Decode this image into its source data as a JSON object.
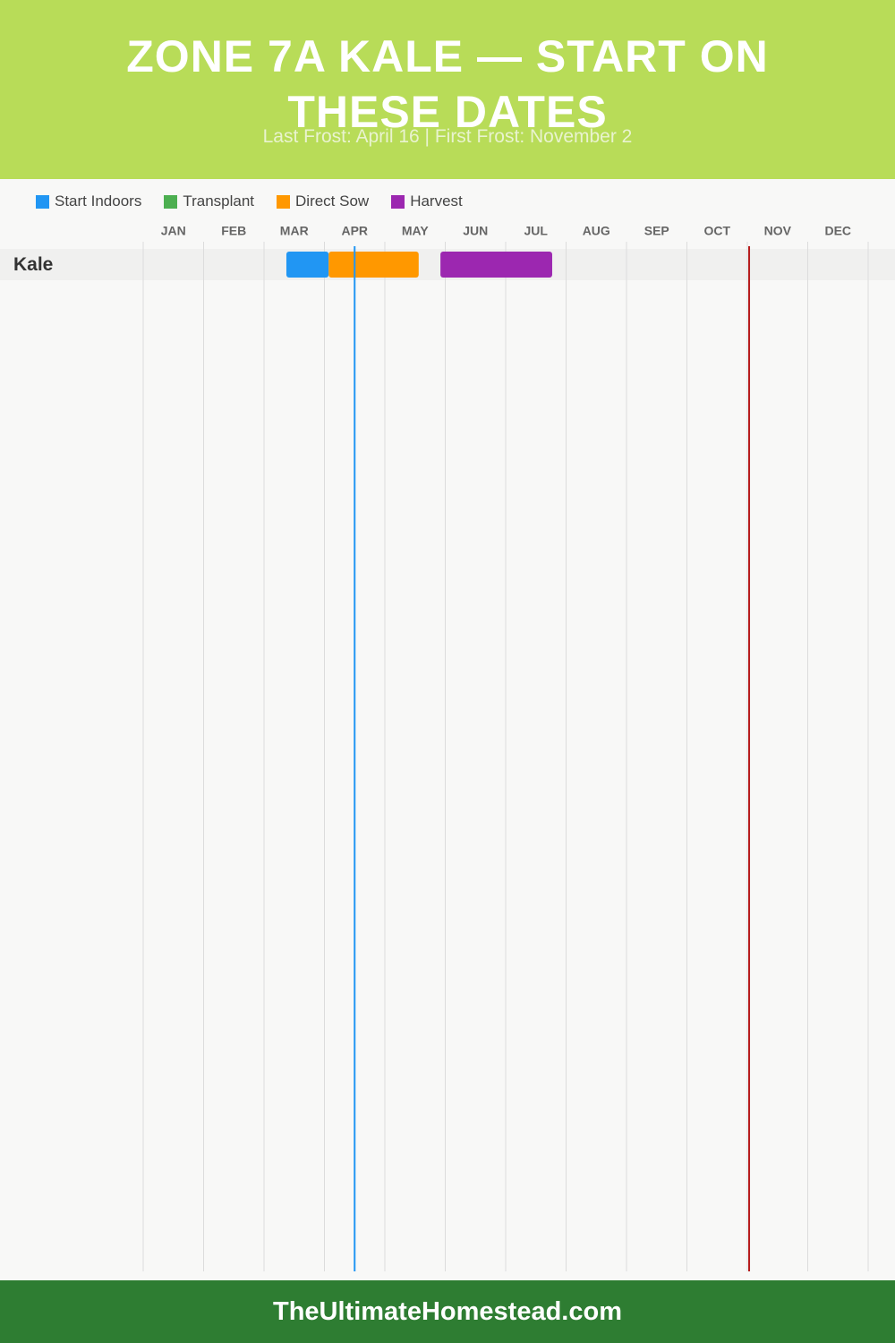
{
  "chart_data": {
    "type": "gantt",
    "title": "ZONE 7A KALE — START ON THESE DATES",
    "subtitle": "Last Frost: April 16 | First Frost: November 2",
    "categories": [
      "Kale"
    ],
    "series": [
      {
        "name": "Start Indoors",
        "color": "#2196f3",
        "start": [
          2.37
        ],
        "end": [
          3.07
        ]
      },
      {
        "name": "Transplant",
        "color": "#4caf50",
        "start": [
          null
        ],
        "end": [
          null
        ]
      },
      {
        "name": "Direct Sow",
        "color": "#ff9800",
        "start": [
          3.07
        ],
        "end": [
          4.56
        ]
      },
      {
        "name": "Harvest",
        "color": "#9c27b0",
        "start": [
          4.92
        ],
        "end": [
          6.77
        ]
      }
    ],
    "frost_lines": [
      {
        "value": 3.5,
        "color": "#2196f3"
      },
      {
        "value": 10.03,
        "color": "#b71c1c"
      }
    ],
    "xlim": [
      0,
      12
    ],
    "xticks": [
      {
        "value": 0,
        "label": "JAN"
      },
      {
        "value": 1,
        "label": "FEB"
      },
      {
        "value": 2,
        "label": "MAR"
      },
      {
        "value": 3,
        "label": "APR"
      },
      {
        "value": 4,
        "label": "MAY"
      },
      {
        "value": 5,
        "label": "JUN"
      },
      {
        "value": 6,
        "label": "JUL"
      },
      {
        "value": 7,
        "label": "AUG"
      },
      {
        "value": 8,
        "label": "SEP"
      },
      {
        "value": 9,
        "label": "OCT"
      },
      {
        "value": 10,
        "label": "NOV"
      },
      {
        "value": 11,
        "label": "DEC"
      }
    ],
    "grid": true,
    "footer": "TheUltimateHomestead.com"
  }
}
